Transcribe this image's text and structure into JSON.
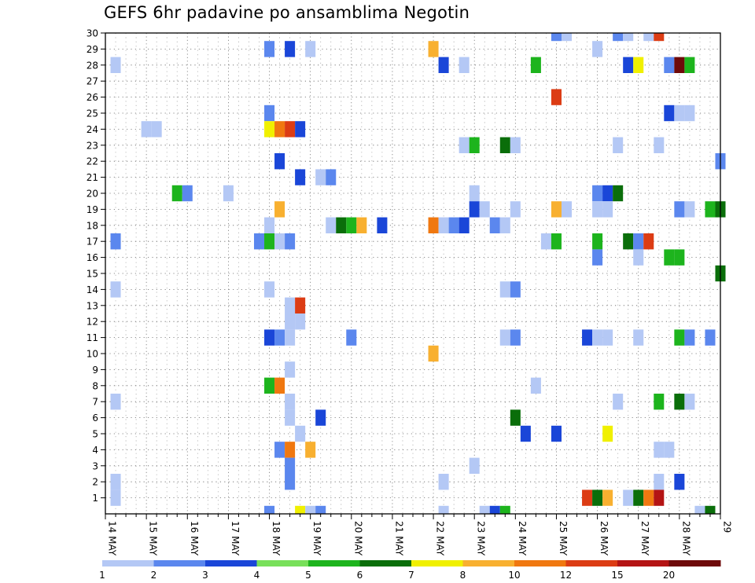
{
  "chart_data": {
    "type": "heatmap",
    "title": "GEFS 6hr padavine po ansamblima Negotin",
    "xlabel": "",
    "ylabel": "",
    "x_tick_labels": [
      "14 MAY",
      "15 MAY",
      "16 MAY",
      "17 MAY",
      "18 MAY",
      "19 MAY",
      "20 MAY",
      "21 MAY",
      "22 MAY",
      "23 MAY",
      "24 MAY",
      "25 MAY",
      "26 MAY",
      "27 MAY",
      "28 MAY",
      "29"
    ],
    "y_tick_labels": [
      "1",
      "2",
      "3",
      "4",
      "5",
      "6",
      "7",
      "8",
      "9",
      "10",
      "11",
      "12",
      "13",
      "14",
      "15",
      "16",
      "17",
      "18",
      "19",
      "20",
      "21",
      "22",
      "23",
      "24",
      "25",
      "26",
      "27",
      "28",
      "29",
      "30"
    ],
    "ylim": [
      0,
      30
    ],
    "x_range_days": [
      0,
      15
    ],
    "grid": true,
    "legend": {
      "placement": "bottom",
      "labels": [
        "1",
        "2",
        "3",
        "4",
        "5",
        "6",
        "7",
        "8",
        "10",
        "12",
        "15",
        "20"
      ],
      "colors": [
        "#b4c8f5",
        "#5b87ee",
        "#1a46d8",
        "#78e05a",
        "#1db41d",
        "#0a6e0a",
        "#f0f000",
        "#f8b030",
        "#f07810",
        "#dc3c14",
        "#b41414",
        "#6e0a0a"
      ]
    },
    "cells": [
      {
        "d": 0.25,
        "m": 28,
        "c": 0
      },
      {
        "d": 0.25,
        "m": 17,
        "c": 1
      },
      {
        "d": 0.25,
        "m": 14,
        "c": 0
      },
      {
        "d": 0.25,
        "m": 7,
        "c": 0
      },
      {
        "d": 0.25,
        "m": 2,
        "c": 0
      },
      {
        "d": 0.25,
        "m": 1,
        "c": 0
      },
      {
        "d": 1.0,
        "m": 24,
        "c": 0
      },
      {
        "d": 1.25,
        "m": 24,
        "c": 0
      },
      {
        "d": 1.75,
        "m": 20,
        "c": 4
      },
      {
        "d": 2.0,
        "m": 20,
        "c": 1
      },
      {
        "d": 3.0,
        "m": 20,
        "c": 0
      },
      {
        "d": 3.75,
        "m": 17,
        "c": 1
      },
      {
        "d": 4.0,
        "m": 29,
        "c": 1
      },
      {
        "d": 4.0,
        "m": 25,
        "c": 1
      },
      {
        "d": 4.0,
        "m": 24,
        "c": 6
      },
      {
        "d": 4.0,
        "m": 18,
        "c": 0
      },
      {
        "d": 4.0,
        "m": 17,
        "c": 4
      },
      {
        "d": 4.0,
        "m": 14,
        "c": 0
      },
      {
        "d": 4.0,
        "m": 11,
        "c": 2
      },
      {
        "d": 4.0,
        "m": 8,
        "c": 4
      },
      {
        "d": 4.0,
        "m": 0,
        "c": 1
      },
      {
        "d": 4.25,
        "m": 24,
        "c": 8
      },
      {
        "d": 4.25,
        "m": 22,
        "c": 2
      },
      {
        "d": 4.25,
        "m": 19,
        "c": 7
      },
      {
        "d": 4.25,
        "m": 17,
        "c": 0
      },
      {
        "d": 4.25,
        "m": 11,
        "c": 1
      },
      {
        "d": 4.25,
        "m": 8,
        "c": 8
      },
      {
        "d": 4.25,
        "m": 4,
        "c": 1
      },
      {
        "d": 4.5,
        "m": 29,
        "c": 2
      },
      {
        "d": 4.5,
        "m": 24,
        "c": 9
      },
      {
        "d": 4.5,
        "m": 17,
        "c": 1
      },
      {
        "d": 4.5,
        "m": 13,
        "c": 0
      },
      {
        "d": 4.5,
        "m": 12,
        "c": 0
      },
      {
        "d": 4.5,
        "m": 11,
        "c": 0
      },
      {
        "d": 4.5,
        "m": 9,
        "c": 0
      },
      {
        "d": 4.5,
        "m": 7,
        "c": 0
      },
      {
        "d": 4.5,
        "m": 6,
        "c": 0
      },
      {
        "d": 4.5,
        "m": 4,
        "c": 8
      },
      {
        "d": 4.5,
        "m": 3,
        "c": 1
      },
      {
        "d": 4.5,
        "m": 2,
        "c": 1
      },
      {
        "d": 4.75,
        "m": 24,
        "c": 2
      },
      {
        "d": 4.75,
        "m": 21,
        "c": 2
      },
      {
        "d": 4.75,
        "m": 13,
        "c": 9
      },
      {
        "d": 4.75,
        "m": 12,
        "c": 0
      },
      {
        "d": 4.75,
        "m": 5,
        "c": 0
      },
      {
        "d": 4.75,
        "m": 0,
        "c": 6
      },
      {
        "d": 5.0,
        "m": 29,
        "c": 0
      },
      {
        "d": 5.0,
        "m": 4,
        "c": 7
      },
      {
        "d": 5.0,
        "m": 0,
        "c": 0
      },
      {
        "d": 5.25,
        "m": 21,
        "c": 0
      },
      {
        "d": 5.25,
        "m": 6,
        "c": 2
      },
      {
        "d": 5.25,
        "m": 0,
        "c": 1
      },
      {
        "d": 5.5,
        "m": 21,
        "c": 1
      },
      {
        "d": 5.5,
        "m": 18,
        "c": 0
      },
      {
        "d": 5.75,
        "m": 18,
        "c": 5
      },
      {
        "d": 6.0,
        "m": 18,
        "c": 4
      },
      {
        "d": 6.0,
        "m": 11,
        "c": 1
      },
      {
        "d": 6.25,
        "m": 18,
        "c": 7
      },
      {
        "d": 6.75,
        "m": 18,
        "c": 2
      },
      {
        "d": 8.0,
        "m": 29,
        "c": 7
      },
      {
        "d": 8.0,
        "m": 18,
        "c": 8
      },
      {
        "d": 8.0,
        "m": 10,
        "c": 7
      },
      {
        "d": 8.25,
        "m": 28,
        "c": 2
      },
      {
        "d": 8.25,
        "m": 18,
        "c": 0
      },
      {
        "d": 8.25,
        "m": 2,
        "c": 0
      },
      {
        "d": 8.25,
        "m": 0,
        "c": 0
      },
      {
        "d": 8.5,
        "m": 18,
        "c": 1
      },
      {
        "d": 8.75,
        "m": 28,
        "c": 0
      },
      {
        "d": 8.75,
        "m": 23,
        "c": 0
      },
      {
        "d": 8.75,
        "m": 18,
        "c": 2
      },
      {
        "d": 9.0,
        "m": 23,
        "c": 4
      },
      {
        "d": 9.0,
        "m": 20,
        "c": 0
      },
      {
        "d": 9.0,
        "m": 19,
        "c": 2
      },
      {
        "d": 9.0,
        "m": 3,
        "c": 0
      },
      {
        "d": 9.25,
        "m": 19,
        "c": 0
      },
      {
        "d": 9.25,
        "m": 0,
        "c": 0
      },
      {
        "d": 9.5,
        "m": 18,
        "c": 1
      },
      {
        "d": 9.5,
        "m": 0,
        "c": 2
      },
      {
        "d": 9.75,
        "m": 23,
        "c": 5
      },
      {
        "d": 9.75,
        "m": 18,
        "c": 0
      },
      {
        "d": 9.75,
        "m": 14,
        "c": 0
      },
      {
        "d": 9.75,
        "m": 11,
        "c": 0
      },
      {
        "d": 9.75,
        "m": 0,
        "c": 4
      },
      {
        "d": 10.0,
        "m": 23,
        "c": 0
      },
      {
        "d": 10.0,
        "m": 19,
        "c": 0
      },
      {
        "d": 10.0,
        "m": 14,
        "c": 1
      },
      {
        "d": 10.0,
        "m": 11,
        "c": 1
      },
      {
        "d": 10.0,
        "m": 6,
        "c": 5
      },
      {
        "d": 10.25,
        "m": 5,
        "c": 2
      },
      {
        "d": 10.5,
        "m": 28,
        "c": 4
      },
      {
        "d": 10.5,
        "m": 8,
        "c": 0
      },
      {
        "d": 10.75,
        "m": 17,
        "c": 0
      },
      {
        "d": 11.0,
        "m": 30,
        "c": 1
      },
      {
        "d": 11.0,
        "m": 26,
        "c": 9
      },
      {
        "d": 11.0,
        "m": 19,
        "c": 7
      },
      {
        "d": 11.0,
        "m": 17,
        "c": 4
      },
      {
        "d": 11.0,
        "m": 5,
        "c": 2
      },
      {
        "d": 11.25,
        "m": 30,
        "c": 0
      },
      {
        "d": 11.25,
        "m": 19,
        "c": 0
      },
      {
        "d": 11.75,
        "m": 11,
        "c": 2
      },
      {
        "d": 11.75,
        "m": 1,
        "c": 9
      },
      {
        "d": 12.0,
        "m": 29,
        "c": 0
      },
      {
        "d": 12.0,
        "m": 20,
        "c": 1
      },
      {
        "d": 12.0,
        "m": 19,
        "c": 0
      },
      {
        "d": 12.0,
        "m": 17,
        "c": 4
      },
      {
        "d": 12.0,
        "m": 16,
        "c": 1
      },
      {
        "d": 12.0,
        "m": 11,
        "c": 0
      },
      {
        "d": 12.0,
        "m": 1,
        "c": 5
      },
      {
        "d": 12.25,
        "m": 20,
        "c": 2
      },
      {
        "d": 12.25,
        "m": 19,
        "c": 0
      },
      {
        "d": 12.25,
        "m": 11,
        "c": 0
      },
      {
        "d": 12.25,
        "m": 5,
        "c": 6
      },
      {
        "d": 12.25,
        "m": 1,
        "c": 7
      },
      {
        "d": 12.5,
        "m": 30,
        "c": 1
      },
      {
        "d": 12.5,
        "m": 23,
        "c": 0
      },
      {
        "d": 12.5,
        "m": 20,
        "c": 5
      },
      {
        "d": 12.5,
        "m": 7,
        "c": 0
      },
      {
        "d": 12.75,
        "m": 30,
        "c": 0
      },
      {
        "d": 12.75,
        "m": 28,
        "c": 2
      },
      {
        "d": 12.75,
        "m": 17,
        "c": 5
      },
      {
        "d": 12.75,
        "m": 1,
        "c": 0
      },
      {
        "d": 13.0,
        "m": 28,
        "c": 6
      },
      {
        "d": 13.0,
        "m": 17,
        "c": 1
      },
      {
        "d": 13.0,
        "m": 16,
        "c": 0
      },
      {
        "d": 13.0,
        "m": 11,
        "c": 0
      },
      {
        "d": 13.0,
        "m": 1,
        "c": 5
      },
      {
        "d": 13.25,
        "m": 30,
        "c": 0
      },
      {
        "d": 13.25,
        "m": 17,
        "c": 9
      },
      {
        "d": 13.25,
        "m": 1,
        "c": 8
      },
      {
        "d": 13.5,
        "m": 30,
        "c": 9
      },
      {
        "d": 13.5,
        "m": 23,
        "c": 0
      },
      {
        "d": 13.5,
        "m": 7,
        "c": 4
      },
      {
        "d": 13.5,
        "m": 4,
        "c": 0
      },
      {
        "d": 13.5,
        "m": 2,
        "c": 0
      },
      {
        "d": 13.5,
        "m": 1,
        "c": 10
      },
      {
        "d": 13.75,
        "m": 28,
        "c": 1
      },
      {
        "d": 13.75,
        "m": 25,
        "c": 2
      },
      {
        "d": 13.75,
        "m": 16,
        "c": 4
      },
      {
        "d": 13.75,
        "m": 4,
        "c": 0
      },
      {
        "d": 14.0,
        "m": 28,
        "c": 11
      },
      {
        "d": 14.0,
        "m": 25,
        "c": 0
      },
      {
        "d": 14.0,
        "m": 19,
        "c": 1
      },
      {
        "d": 14.0,
        "m": 16,
        "c": 4
      },
      {
        "d": 14.0,
        "m": 11,
        "c": 4
      },
      {
        "d": 14.0,
        "m": 7,
        "c": 5
      },
      {
        "d": 14.0,
        "m": 2,
        "c": 2
      },
      {
        "d": 14.25,
        "m": 28,
        "c": 4
      },
      {
        "d": 14.25,
        "m": 25,
        "c": 0
      },
      {
        "d": 14.25,
        "m": 19,
        "c": 0
      },
      {
        "d": 14.25,
        "m": 11,
        "c": 1
      },
      {
        "d": 14.25,
        "m": 7,
        "c": 0
      },
      {
        "d": 14.5,
        "m": 0,
        "c": 0
      },
      {
        "d": 14.75,
        "m": 19,
        "c": 4
      },
      {
        "d": 14.75,
        "m": 11,
        "c": 1
      },
      {
        "d": 14.75,
        "m": 0,
        "c": 5
      },
      {
        "d": 15.0,
        "m": 22,
        "c": 1
      },
      {
        "d": 15.0,
        "m": 19,
        "c": 5
      },
      {
        "d": 15.0,
        "m": 15,
        "c": 5
      }
    ]
  }
}
